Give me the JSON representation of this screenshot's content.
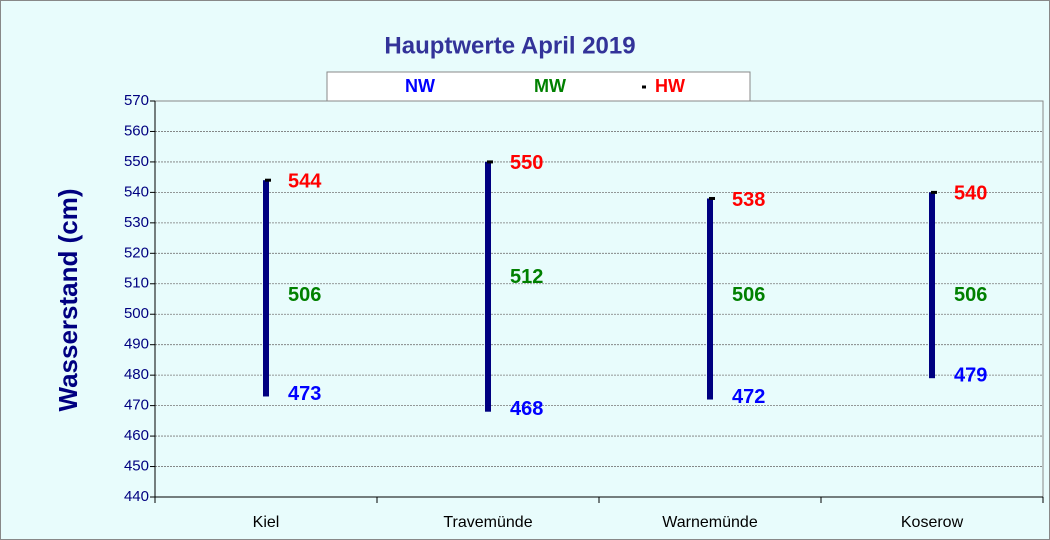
{
  "chart_data": {
    "type": "hilo",
    "title": "Hauptwerte April 2019",
    "y_label": "Wasserstand (cm)",
    "categories": [
      "Kiel",
      "Travemünde",
      "Warnemünde",
      "Koserow"
    ],
    "series": [
      {
        "name": "NW",
        "color": "#0000ff",
        "values": [
          473,
          468,
          472,
          479
        ]
      },
      {
        "name": "MW",
        "color": "#008000",
        "values": [
          506,
          512,
          506,
          506
        ]
      },
      {
        "name": "HW",
        "color": "#ff0000",
        "values": [
          544,
          550,
          538,
          540
        ]
      }
    ],
    "bar_color": "#000080",
    "ylim": [
      440,
      570
    ],
    "yticks": [
      440,
      450,
      460,
      470,
      480,
      490,
      500,
      510,
      520,
      530,
      540,
      550,
      560,
      570
    ],
    "grid": true
  }
}
